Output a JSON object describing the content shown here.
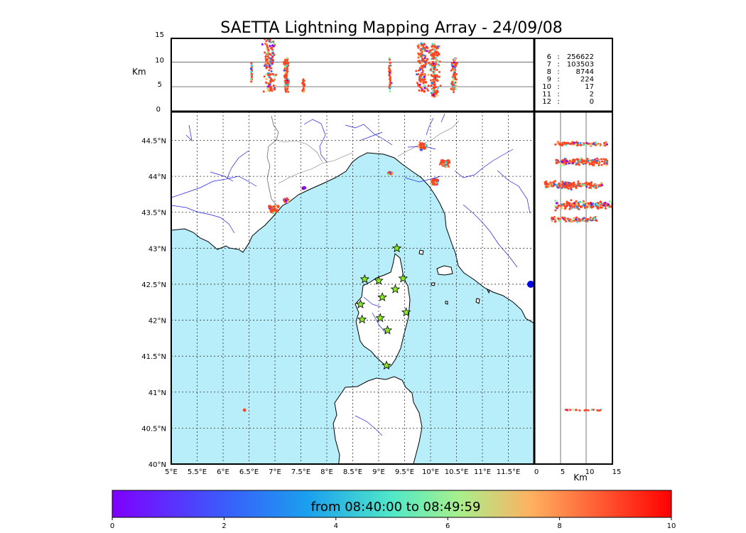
{
  "chart_data": {
    "type": "scatter",
    "title": "SAETTA Lightning Mapping Array - 24/09/08",
    "altitude_panel": {
      "ylabel": "Km",
      "ylim": [
        0,
        15
      ],
      "yticks": [
        "0",
        "5",
        "10",
        "15"
      ]
    },
    "map_panel": {
      "xlim": [
        5.0,
        12.0
      ],
      "ylim": [
        40.0,
        44.9
      ],
      "lon_ticks": [
        "5°E",
        "5.5°E",
        "6°E",
        "6.5°E",
        "7°E",
        "7.5°E",
        "8°E",
        "8.5°E",
        "9°E",
        "9.5°E",
        "10°E",
        "10.5°E",
        "11°E",
        "11.5°E"
      ],
      "lon_values": [
        5.0,
        5.5,
        6.0,
        6.5,
        7.0,
        7.5,
        8.0,
        8.5,
        9.0,
        9.5,
        10.0,
        10.5,
        11.0,
        11.5
      ],
      "lat_ticks": [
        "40°N",
        "40.5°N",
        "41°N",
        "41.5°N",
        "42°N",
        "42.5°N",
        "43°N",
        "43.5°N",
        "44°N",
        "44.5°N"
      ],
      "lat_values": [
        40.0,
        40.5,
        41.0,
        41.5,
        42.0,
        42.5,
        43.0,
        43.5,
        44.0,
        44.5
      ],
      "grid": true,
      "stations": [
        [
          9.35,
          43.0
        ],
        [
          8.73,
          42.57
        ],
        [
          9.0,
          42.55
        ],
        [
          9.47,
          42.58
        ],
        [
          9.32,
          42.43
        ],
        [
          9.07,
          42.32
        ],
        [
          8.65,
          42.22
        ],
        [
          9.53,
          42.11
        ],
        [
          8.68,
          42.01
        ],
        [
          9.03,
          42.03
        ],
        [
          9.17,
          41.86
        ],
        [
          9.15,
          41.37
        ]
      ],
      "flash_clusters": [
        {
          "lon": 6.98,
          "lat": 43.55,
          "spread": 0.1,
          "n": 70
        },
        {
          "lon": 7.22,
          "lat": 43.67,
          "spread": 0.06,
          "n": 25
        },
        {
          "lon": 7.55,
          "lat": 43.84,
          "spread": 0.03,
          "n": 8
        },
        {
          "lon": 9.22,
          "lat": 44.04,
          "spread": 0.04,
          "n": 15
        },
        {
          "lon": 9.85,
          "lat": 44.42,
          "spread": 0.1,
          "n": 50
        },
        {
          "lon": 10.28,
          "lat": 44.18,
          "spread": 0.12,
          "n": 60
        },
        {
          "lon": 10.08,
          "lat": 43.92,
          "spread": 0.08,
          "n": 55
        },
        {
          "lon": 6.42,
          "lat": 40.75,
          "spread": 0.02,
          "n": 5
        }
      ]
    },
    "height_panel": {
      "xlabel": "Km",
      "xlim": [
        0,
        15
      ],
      "xticks": [
        "0",
        "5",
        "10",
        "15"
      ]
    },
    "station_counts": [
      {
        "stations": "6",
        "count": "256622",
        "color": "#000000"
      },
      {
        "stations": "7",
        "count": "103503",
        "color": "#ff0000"
      },
      {
        "stations": "8",
        "count": "8744",
        "color": "#000000"
      },
      {
        "stations": "9",
        "count": "224",
        "color": "#000000"
      },
      {
        "stations": "10",
        "count": "17",
        "color": "#000000"
      },
      {
        "stations": "11",
        "count": "2",
        "color": "#000000"
      },
      {
        "stations": "12",
        "count": "0",
        "color": "#000000"
      }
    ],
    "colorbar": {
      "label": "from 08:40:00 to 08:49:59",
      "ticks": [
        "0",
        "2",
        "4",
        "6",
        "8",
        "10"
      ],
      "values": [
        0,
        2,
        4,
        6,
        8,
        10
      ],
      "colormap": "rainbow"
    },
    "colors": {
      "sea": "#b8eefa",
      "land": "#ffffff",
      "rivers": "#2020e0",
      "borders": "#666666",
      "station_fill": "#88ee22",
      "dominant_points": "#ff4422"
    }
  }
}
